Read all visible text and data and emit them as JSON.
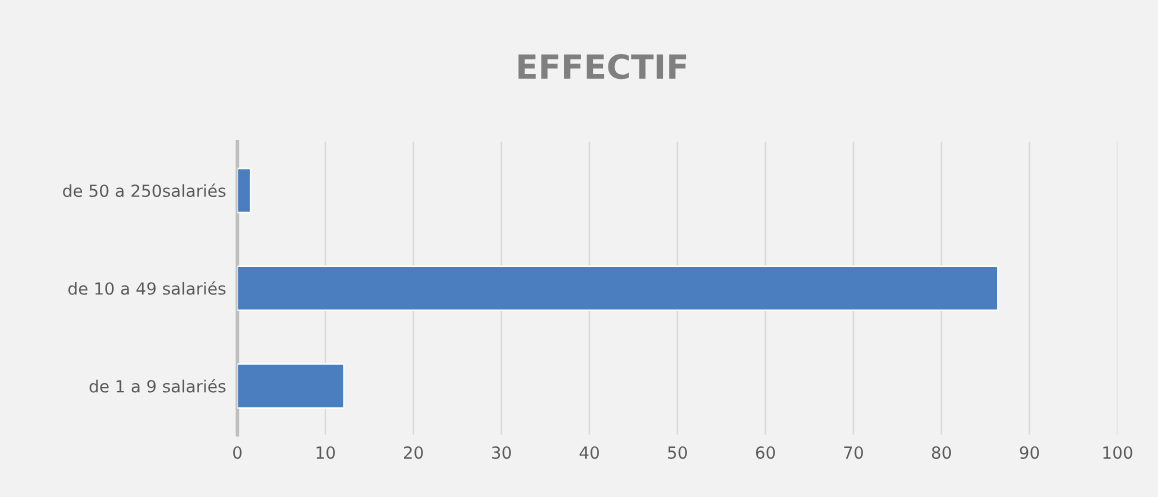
{
  "chart_data": {
    "type": "bar",
    "orientation": "horizontal",
    "title": "EFFECTIF",
    "categories": [
      "de 50 a 250salariés",
      "de 10 a 49 salariés",
      "de 1 a 9 salariés"
    ],
    "values": [
      1.5,
      86.4,
      12.1
    ],
    "color": "#4a7ebf",
    "xlim": [
      0,
      100
    ],
    "xticks": [
      0,
      10,
      20,
      30,
      40,
      50,
      60,
      70,
      80,
      90,
      100
    ],
    "grid": "x"
  }
}
